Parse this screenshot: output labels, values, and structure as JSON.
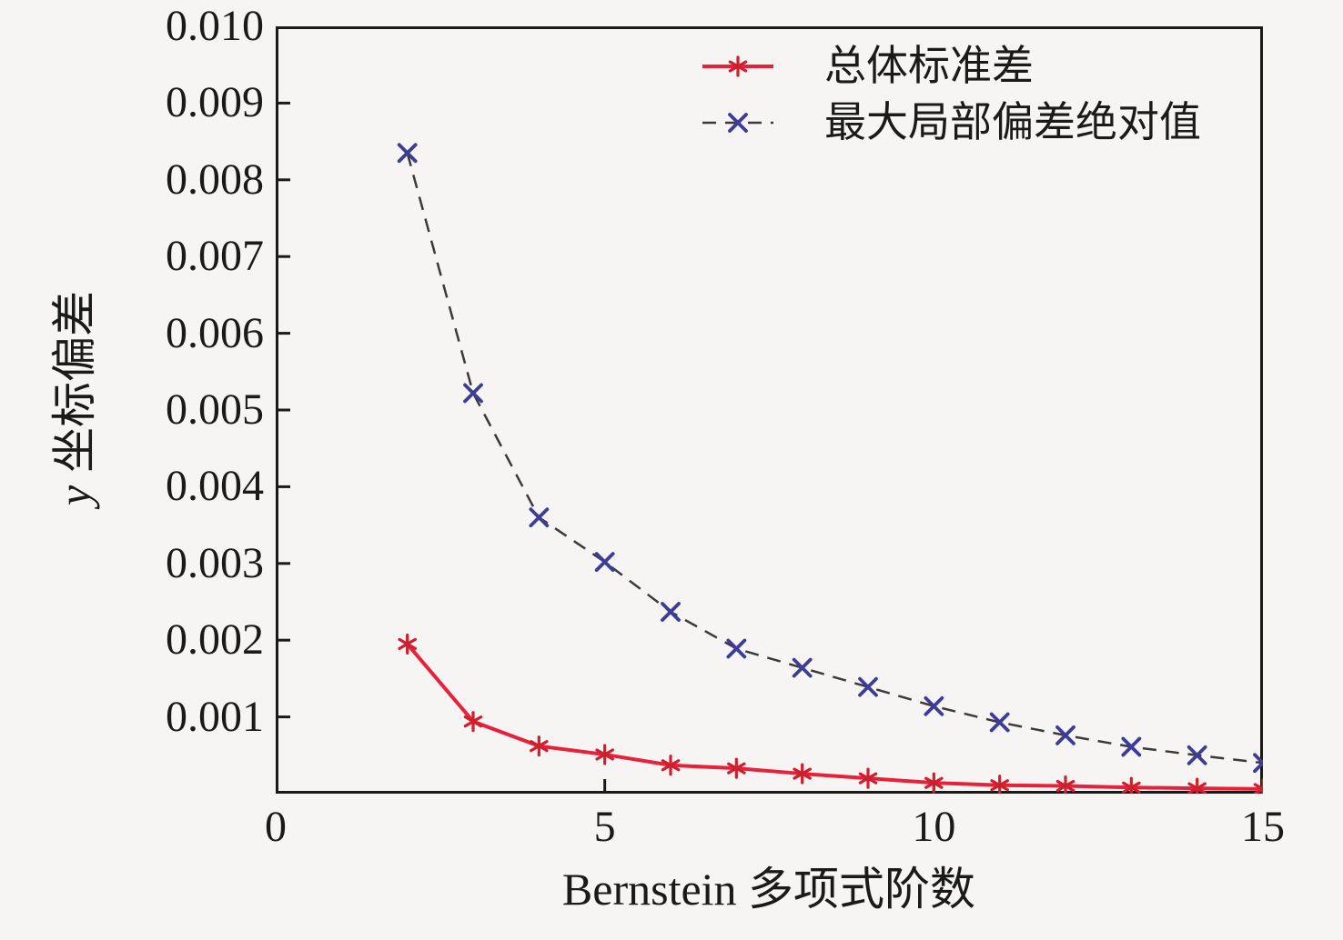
{
  "figure": {
    "background_color": "#f6f5f3",
    "axis_color": "#1a1a1a"
  },
  "chart_data": {
    "type": "line",
    "title": "",
    "xlabel": "Bernstein 多项式阶数",
    "ylabel": "y 坐标偏差",
    "ylabel_parts": [
      "y",
      "坐标偏差"
    ],
    "xlim": [
      0,
      15
    ],
    "ylim": [
      0,
      0.01
    ],
    "xticks": [
      0,
      5,
      10,
      15
    ],
    "xtick_labels": [
      "0",
      "5",
      "10",
      "15"
    ],
    "yticks": [
      0.001,
      0.002,
      0.003,
      0.004,
      0.005,
      0.006,
      0.007,
      0.008,
      0.009,
      0.01
    ],
    "ytick_labels": [
      "0.001",
      "0.002",
      "0.003",
      "0.004",
      "0.005",
      "0.006",
      "0.007",
      "0.008",
      "0.009",
      "0.010"
    ],
    "grid": false,
    "legend_position": "top-right-inside",
    "x": [
      2,
      3,
      4,
      5,
      6,
      7,
      8,
      9,
      10,
      11,
      12,
      13,
      14,
      15
    ],
    "series": [
      {
        "name": "总体标准差",
        "line_style": "solid",
        "line_color": "#e8213a",
        "line_width": 4,
        "marker": "asterisk",
        "marker_color": "#cf1f2f",
        "values": [
          0.00195,
          0.00094,
          0.00062,
          0.00051,
          0.00037,
          0.00033,
          0.00026,
          0.0002,
          0.00014,
          0.00011,
          0.0001,
          8e-05,
          7e-05,
          6e-05
        ]
      },
      {
        "name": "最大局部偏差绝对值",
        "line_style": "dashed",
        "line_color": "#3a3a3a",
        "line_width": 2.5,
        "marker": "x",
        "marker_color": "#3d3d96",
        "values": [
          0.00835,
          0.00522,
          0.0036,
          0.00302,
          0.00237,
          0.00189,
          0.00164,
          0.00139,
          0.00114,
          0.00093,
          0.00076,
          0.00061,
          0.0005,
          0.0004
        ]
      }
    ]
  }
}
